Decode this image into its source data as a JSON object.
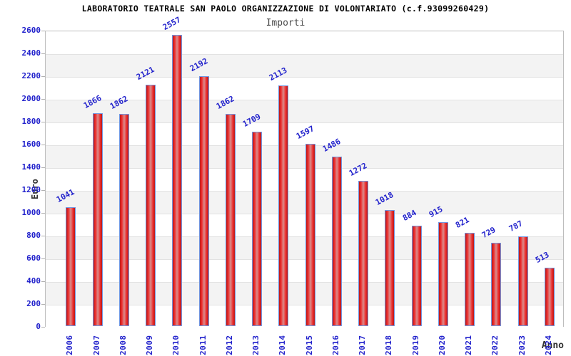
{
  "header": {
    "title": "LABORATORIO TEATRALE SAN PAOLO ORGANIZZAZIONE DI VOLONTARIATO (c.f.93099260429)",
    "subtitle": "Importi"
  },
  "chart_data": {
    "type": "bar",
    "title": "LABORATORIO TEATRALE SAN PAOLO ORGANIZZAZIONE DI VOLONTARIATO (c.f.93099260429)",
    "subtitle": "Importi",
    "xlabel": "Anno",
    "ylabel": "Euro",
    "categories": [
      "2006",
      "2007",
      "2008",
      "2009",
      "2010",
      "2011",
      "2012",
      "2013",
      "2014",
      "2015",
      "2016",
      "2017",
      "2018",
      "2019",
      "2020",
      "2021",
      "2022",
      "2023",
      "2024"
    ],
    "values": [
      1041,
      1866,
      1862,
      2121,
      2557,
      2192,
      1862,
      1709,
      2113,
      1597,
      1486,
      1272,
      1018,
      884,
      915,
      821,
      729,
      787,
      513
    ],
    "ylim": [
      0,
      2600
    ],
    "ytick_step": 200,
    "y_tick_labels": [
      "0",
      "200",
      "400",
      "600",
      "800",
      "1000",
      "1200",
      "1400",
      "1600",
      "1800",
      "2000",
      "2200",
      "2400",
      "2600"
    ],
    "grid": "horizontal gridlines with alternating white/gray bands",
    "legend_position": "none",
    "bar_labels_rotated_deg": -28,
    "x_labels_rotated_deg": -90
  },
  "colors": {
    "label_blue": "#2222cc",
    "bar_border": "#7296e0",
    "bar_edge_red": "#b51a1a",
    "bar_bright_red": "#ee2b2b",
    "bar_center_highlight": "#d98d8d",
    "band_gray": "#f3f3f3",
    "gridline": "#e2e2e2",
    "axis_title_color": "#333333",
    "title_color": "#000000",
    "subtitle_color": "#4d4d4d"
  }
}
